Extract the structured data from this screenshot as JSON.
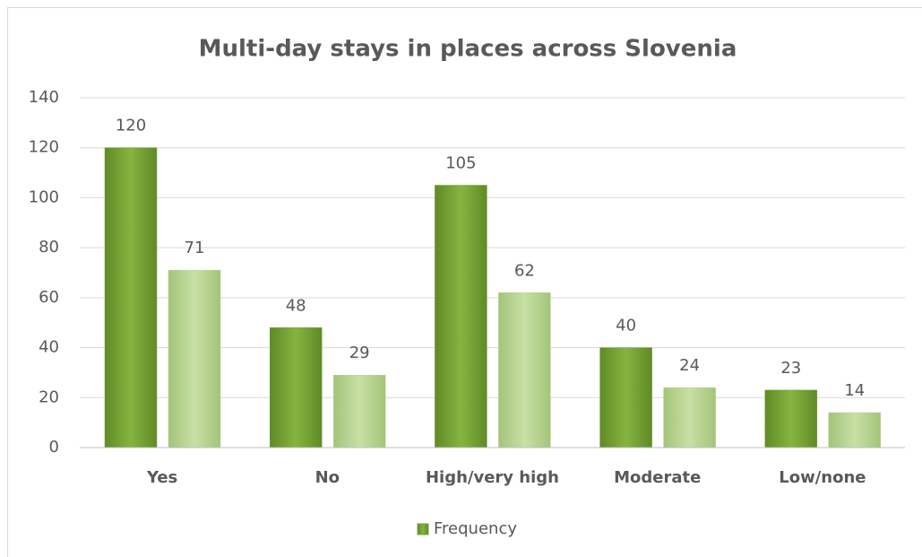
{
  "chart_data": {
    "type": "bar",
    "title": "Multi-day stays in places across Slovenia",
    "categories": [
      "Yes",
      "No",
      "High/very high",
      "Moderate",
      "Low/none"
    ],
    "series": [
      {
        "name": "Frequency",
        "color": "#77a33a",
        "values": [
          120,
          48,
          105,
          40,
          23
        ]
      },
      {
        "color": "#b7d48e",
        "values": [
          71,
          29,
          62,
          24,
          14
        ]
      }
    ],
    "ylim": [
      0,
      140
    ],
    "yticks": [
      0,
      20,
      40,
      60,
      80,
      100,
      120,
      140
    ],
    "grid": true,
    "legend": "bottom"
  }
}
